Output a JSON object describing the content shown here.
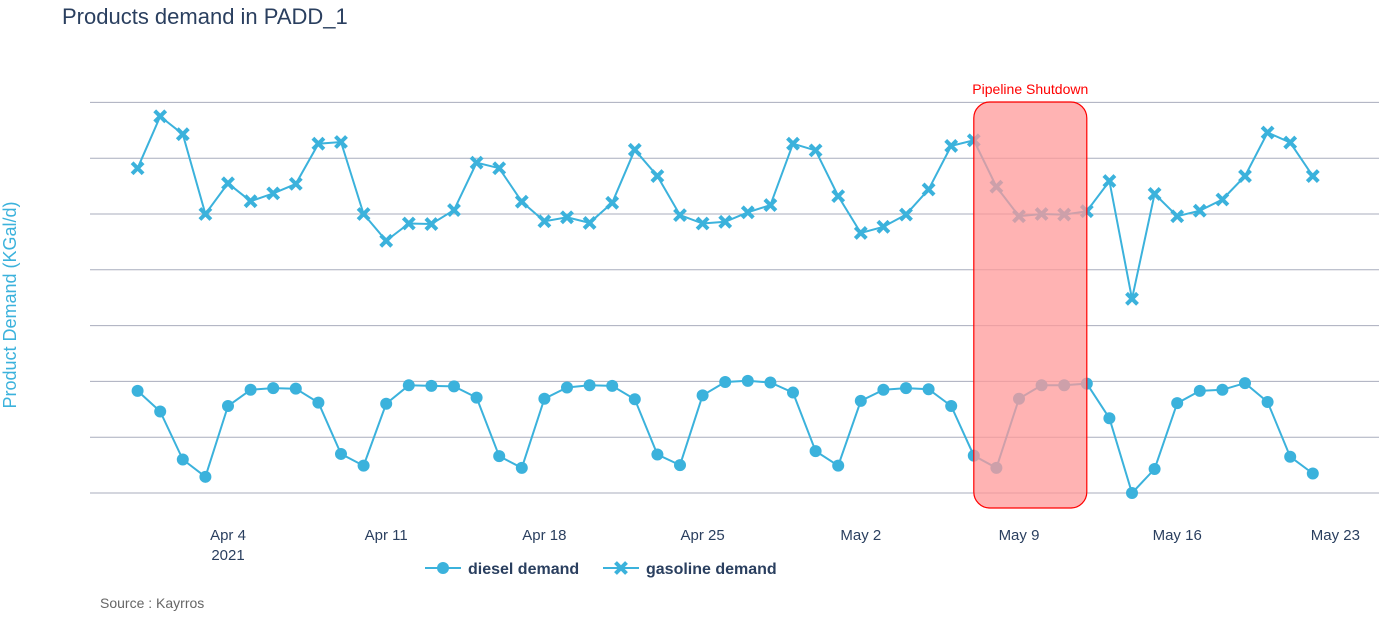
{
  "chart_data": {
    "type": "line",
    "title": "Products demand in PADD_1",
    "ylabel": "Product Demand (KGal/d)",
    "xlabel": "",
    "x_start": "2021-03-31",
    "x_ticks": [
      {
        "date": "2021-04-04",
        "label": "Apr 4",
        "sublabel": "2021"
      },
      {
        "date": "2021-04-11",
        "label": "Apr 11",
        "sublabel": ""
      },
      {
        "date": "2021-04-18",
        "label": "Apr 18",
        "sublabel": ""
      },
      {
        "date": "2021-04-25",
        "label": "Apr 25",
        "sublabel": ""
      },
      {
        "date": "2021-05-02",
        "label": "May 2",
        "sublabel": ""
      },
      {
        "date": "2021-05-09",
        "label": "May 9",
        "sublabel": ""
      },
      {
        "date": "2021-05-16",
        "label": "May 16",
        "sublabel": ""
      },
      {
        "date": "2021-05-23",
        "label": "May 23",
        "sublabel": ""
      }
    ],
    "ylim": [
      0,
      7.25
    ],
    "y_gridlines": [
      0,
      1,
      2,
      3,
      4,
      5,
      6,
      7
    ],
    "y_tick_labels_shown": false,
    "grid": true,
    "legend_position": "bottom",
    "series": [
      {
        "name": "diesel demand",
        "marker": "circle",
        "color": "#3bb2dc",
        "values": [
          1.83,
          1.46,
          0.6,
          0.29,
          1.56,
          1.85,
          1.88,
          1.87,
          1.62,
          0.7,
          0.49,
          1.6,
          1.93,
          1.92,
          1.91,
          1.71,
          0.66,
          0.45,
          1.69,
          1.89,
          1.93,
          1.92,
          1.68,
          0.69,
          0.5,
          1.75,
          1.99,
          2.01,
          1.98,
          1.8,
          0.75,
          0.49,
          1.65,
          1.85,
          1.88,
          1.86,
          1.56,
          0.67,
          0.45,
          1.69,
          1.93,
          1.93,
          1.96,
          1.34,
          0.0,
          0.43,
          1.61,
          1.83,
          1.85,
          1.97,
          1.63,
          0.65,
          0.35
        ]
      },
      {
        "name": "gasoline demand",
        "marker": "x",
        "color": "#3bb2dc",
        "values": [
          5.82,
          6.75,
          6.43,
          5.0,
          5.55,
          5.23,
          5.37,
          5.54,
          6.26,
          6.29,
          5.0,
          4.52,
          4.83,
          4.82,
          5.07,
          5.92,
          5.82,
          5.22,
          4.87,
          4.94,
          4.84,
          5.2,
          6.15,
          5.68,
          4.98,
          4.83,
          4.86,
          5.03,
          5.16,
          6.26,
          6.14,
          5.32,
          4.66,
          4.77,
          4.99,
          5.44,
          6.22,
          6.32,
          5.49,
          4.96,
          5.0,
          4.99,
          5.05,
          5.59,
          3.48,
          5.36,
          4.96,
          5.06,
          5.26,
          5.68,
          6.46,
          6.28,
          5.68
        ]
      }
    ],
    "annotations": [
      {
        "text": "Pipeline Shutdown",
        "x_start": "2021-05-07",
        "x_end": "2021-05-12",
        "fill": "#ff9999",
        "border": "#ff0000"
      }
    ]
  },
  "source": "Source : Kayrros"
}
